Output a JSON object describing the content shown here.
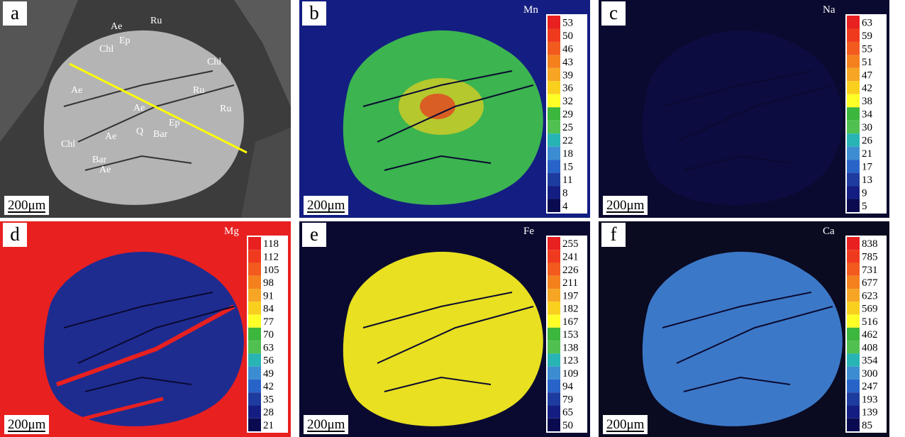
{
  "panels": [
    {
      "letter": "a",
      "scale": "200μm"
    },
    {
      "letter": "b",
      "scale": "200μm",
      "element": "Mn",
      "ticks": [
        "53",
        "50",
        "46",
        "43",
        "39",
        "36",
        "32",
        "29",
        "25",
        "22",
        "18",
        "15",
        "11",
        "8",
        "4"
      ]
    },
    {
      "letter": "c",
      "scale": "200μm",
      "element": "Na",
      "ticks": [
        "63",
        "59",
        "55",
        "51",
        "47",
        "42",
        "38",
        "34",
        "30",
        "26",
        "21",
        "17",
        "13",
        "9",
        "5"
      ]
    },
    {
      "letter": "d",
      "scale": "200μm",
      "element": "Mg",
      "ticks": [
        "118",
        "112",
        "105",
        "98",
        "91",
        "84",
        "77",
        "70",
        "63",
        "56",
        "49",
        "42",
        "35",
        "28",
        "21"
      ]
    },
    {
      "letter": "e",
      "scale": "200μm",
      "element": "Fe",
      "ticks": [
        "255",
        "241",
        "226",
        "211",
        "197",
        "182",
        "167",
        "153",
        "138",
        "123",
        "109",
        "94",
        "79",
        "65",
        "50"
      ]
    },
    {
      "letter": "f",
      "scale": "200μm",
      "element": "Ca",
      "ticks": [
        "838",
        "785",
        "731",
        "677",
        "623",
        "569",
        "516",
        "462",
        "408",
        "354",
        "300",
        "247",
        "193",
        "139",
        "85"
      ]
    }
  ],
  "minerals": [
    "Ru",
    "Ae",
    "Ep",
    "Chl",
    "Chl",
    "Ae",
    "Ru",
    "Ru",
    "Ae",
    "Ae",
    "Q",
    "Ep",
    "Bar",
    "Chl",
    "Bar",
    "Ae"
  ],
  "colors": {
    "scale": [
      "#e82020",
      "#f03a1e",
      "#f25a1e",
      "#f4801e",
      "#f6a524",
      "#fad01e",
      "#ffff28",
      "#3cb63c",
      "#50c050",
      "#28b4b4",
      "#3c8cd2",
      "#2864c8",
      "#1e3ca0",
      "#141e82",
      "#0a0a50"
    ]
  }
}
